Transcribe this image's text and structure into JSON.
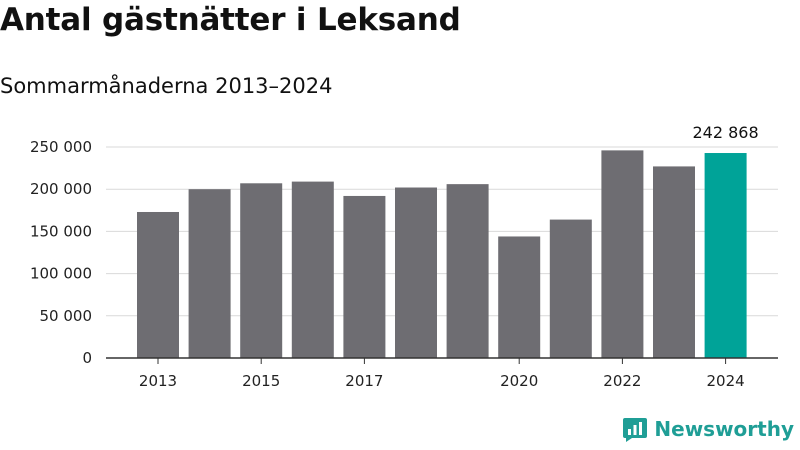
{
  "title": "Antal gästnätter i Leksand",
  "subtitle": "Sommarmånaderna 2013–2024",
  "brand": {
    "name": "Newsworthy",
    "icon": "newsworthy-logo-icon",
    "color": "#1f9e96"
  },
  "colors": {
    "bar": "#6e6d72",
    "highlight": "#00a398",
    "grid": "#d9d9d9",
    "axis": "#333333"
  },
  "chart_data": {
    "type": "bar",
    "title": "Antal gästnätter i Leksand",
    "subtitle": "Sommarmånaderna 2013–2024",
    "xlabel": "",
    "ylabel": "",
    "categories": [
      "2013",
      "2014",
      "2015",
      "2016",
      "2017",
      "2018",
      "2019",
      "2020",
      "2021",
      "2022",
      "2023",
      "2024"
    ],
    "values": [
      173000,
      200000,
      207000,
      209000,
      192000,
      202000,
      206000,
      144000,
      164000,
      246000,
      227000,
      242868
    ],
    "highlight_index": 11,
    "ylim": [
      0,
      250000
    ],
    "yticks": [
      0,
      50000,
      100000,
      150000,
      200000,
      250000
    ],
    "ytick_labels": [
      "0",
      "50 000",
      "100 000",
      "150 000",
      "200 000",
      "250 000"
    ],
    "xtick_labels": [
      "2013",
      "",
      "2015",
      "",
      "2017",
      "",
      "",
      "2020",
      "",
      "2022",
      "",
      "2024"
    ],
    "data_labels": [
      {
        "index": 11,
        "text": "242 868"
      }
    ],
    "grid": true,
    "legend": "none"
  }
}
